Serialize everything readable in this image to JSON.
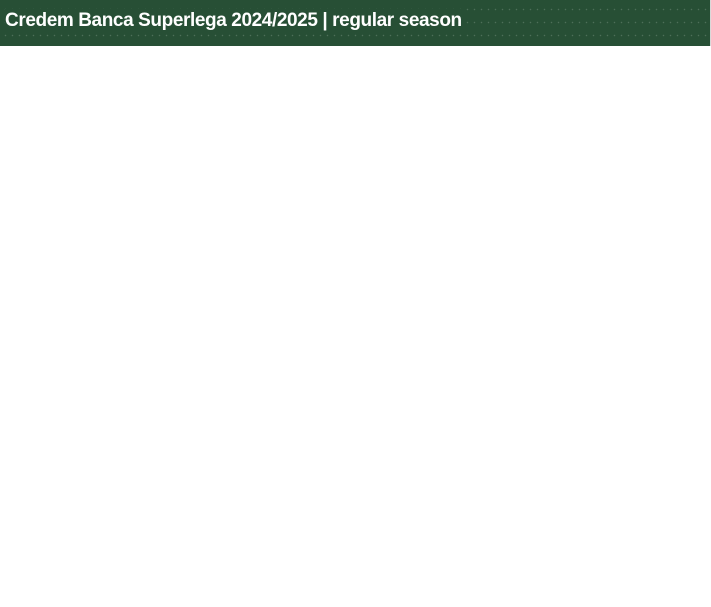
{
  "header": {
    "title": "Credem Banca Superlega 2024/2025 | regular season",
    "background_color": "#274f35",
    "text_color": "#ffffff"
  },
  "content": {
    "background_color": "#ffffff"
  }
}
